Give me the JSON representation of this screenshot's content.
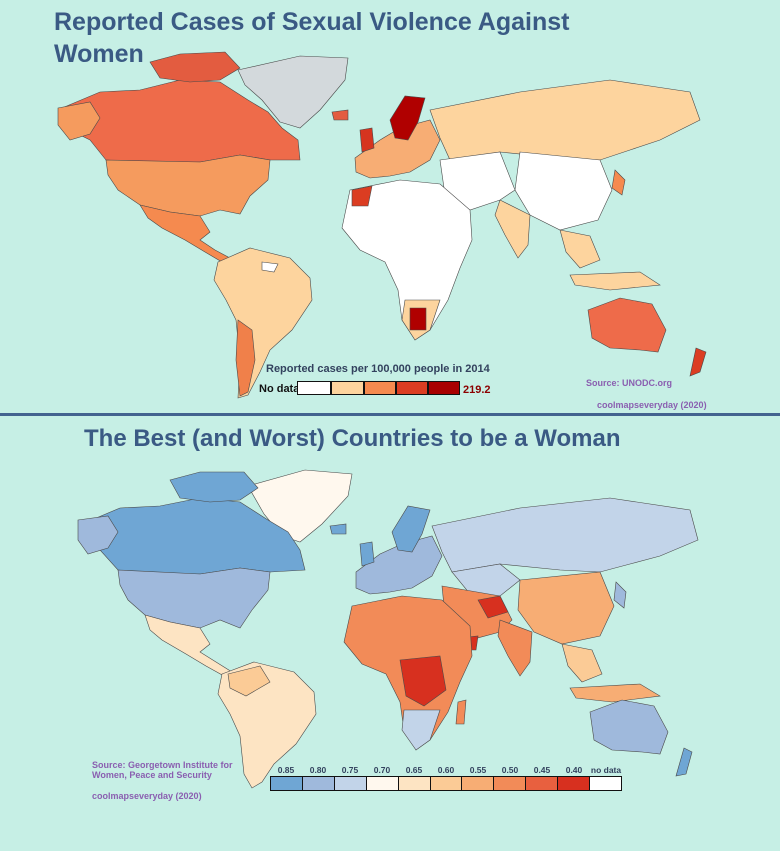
{
  "map1": {
    "title": "Reported Cases of Sexual Violence Against Women",
    "legend_title": "Reported cases per 100,000 people in 2014",
    "nodata_label": "No data",
    "max_label": "219.2",
    "legend_colors": [
      "#ffffff",
      "#fdd49e",
      "#f58a4f",
      "#db3d22",
      "#a80000"
    ],
    "source": "Source: UNODC.org",
    "credit": "coolmapseveryday (2020)"
  },
  "map2": {
    "title": "The Best (and Worst) Countries to be a Woman",
    "source_line1": "Source: Georgetown Institute for",
    "source_line2": "Women, Peace and Security",
    "credit": "coolmapseveryday (2020)",
    "scale_ticks": [
      "0.85",
      "0.80",
      "0.75",
      "0.70",
      "0.65",
      "0.60",
      "0.55",
      "0.50",
      "0.45",
      "0.40",
      "no data"
    ],
    "scale_colors": [
      "#6fa6d4",
      "#9fb9dc",
      "#c2d4e9",
      "#fff8ee",
      "#fde4c3",
      "#fbcb96",
      "#f7ad74",
      "#f28b58",
      "#e8603f",
      "#d7301f",
      "#ffffff"
    ]
  }
}
